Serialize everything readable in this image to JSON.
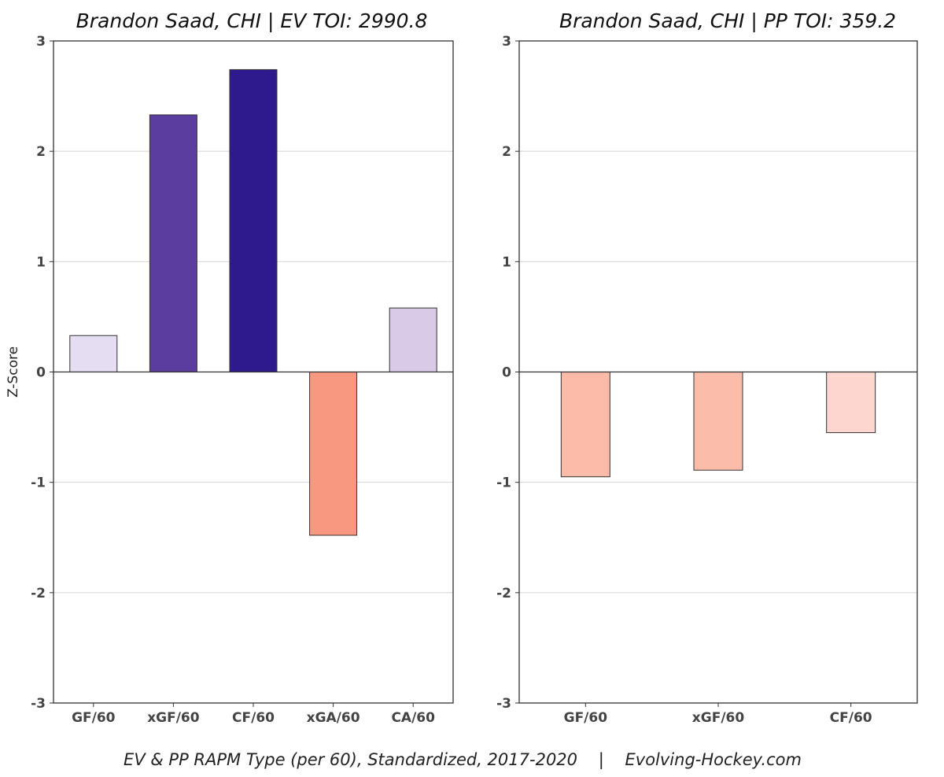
{
  "chart_data": [
    {
      "type": "bar",
      "title": "Brandon Saad, CHI  |  EV TOI: 2990.8",
      "ylabel": "Z-Score",
      "ylim": [
        -3,
        3
      ],
      "yticks": [
        -3,
        -2,
        -1,
        0,
        1,
        2,
        3
      ],
      "grid": true,
      "categories": [
        "GF/60",
        "xGF/60",
        "CF/60",
        "xGA/60",
        "CA/60"
      ],
      "values": [
        0.33,
        2.33,
        2.74,
        -1.48,
        0.58
      ],
      "colors": [
        "#e5def2",
        "#5a3d9e",
        "#2e1a8c",
        "#f89880",
        "#d9cbe7"
      ]
    },
    {
      "type": "bar",
      "title": "Brandon Saad, CHI  |  PP TOI: 359.2",
      "ylabel": "",
      "ylim": [
        -3,
        3
      ],
      "yticks": [
        -3,
        -2,
        -1,
        0,
        1,
        2,
        3
      ],
      "grid": true,
      "categories": [
        "GF/60",
        "xGF/60",
        "CF/60"
      ],
      "values": [
        -0.95,
        -0.89,
        -0.55
      ],
      "colors": [
        "#fcbaa8",
        "#fbbca9",
        "#fdd7cf"
      ]
    }
  ],
  "footer": "EV & PP RAPM Type (per 60), Standardized, 2017-2020    |    Evolving-Hockey.com"
}
